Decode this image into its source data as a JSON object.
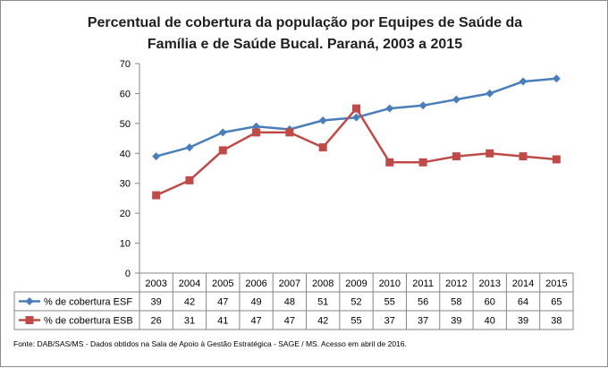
{
  "chart_data": {
    "type": "line",
    "title_lines": [
      "Percentual de cobertura da população por Equipes de Saúde da",
      "Família e de Saúde Bucal. Paraná, 2003 a 2015"
    ],
    "categories": [
      "2003",
      "2004",
      "2005",
      "2006",
      "2007",
      "2008",
      "2009",
      "2010",
      "2011",
      "2012",
      "2013",
      "2014",
      "2015"
    ],
    "ylim": [
      0,
      70
    ],
    "yticks": [
      0,
      10,
      20,
      30,
      40,
      50,
      60,
      70
    ],
    "grid": false,
    "legend": "data-table-left",
    "series": [
      {
        "name": "% de cobertura ESF",
        "color": "#4a7ebb",
        "marker": "diamond",
        "values": [
          39,
          42,
          47,
          49,
          48,
          51,
          52,
          55,
          56,
          58,
          60,
          64,
          65
        ]
      },
      {
        "name": "% de cobertura ESB",
        "color": "#be4b48",
        "marker": "square",
        "values": [
          26,
          31,
          41,
          47,
          47,
          42,
          55,
          37,
          37,
          39,
          40,
          39,
          38
        ]
      }
    ],
    "source": "Fonte:  DAB/SAS/MS - Dados obtidos na Sala de Apoio à Gestão Estratégica - SAGE / MS. Acesso em abril de 2016."
  }
}
